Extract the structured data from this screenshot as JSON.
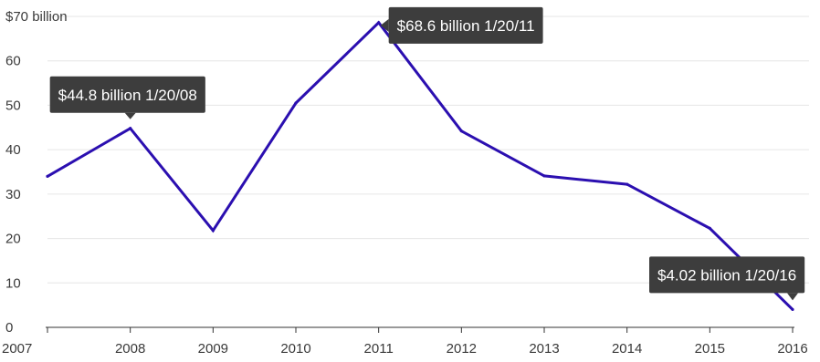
{
  "chart_data": {
    "type": "line",
    "title": "",
    "xlabel": "",
    "ylabel": "",
    "x": [
      2007,
      2008,
      2009,
      2010,
      2011,
      2012,
      2013,
      2014,
      2015,
      2016
    ],
    "y_top_tick_label": "$70 billion",
    "y_ticks": [
      0,
      10,
      20,
      30,
      40,
      50,
      60,
      70
    ],
    "x_ticks": [
      "2007",
      "2008",
      "2009",
      "2010",
      "2011",
      "2012",
      "2013",
      "2014",
      "2015",
      "2016"
    ],
    "ylim": [
      0,
      70
    ],
    "xlim": [
      2007,
      2016
    ],
    "grid": true,
    "series": [
      {
        "color": "#2b0fb0",
        "points": [
          {
            "x": 2007,
            "y": 34
          },
          {
            "x": 2008,
            "y": 44.8
          },
          {
            "x": 2009,
            "y": 21.8
          },
          {
            "x": 2010,
            "y": 50.5
          },
          {
            "x": 2011,
            "y": 68.6
          },
          {
            "x": 2012,
            "y": 44.2
          },
          {
            "x": 2013,
            "y": 34.1
          },
          {
            "x": 2014,
            "y": 32.2
          },
          {
            "x": 2015,
            "y": 22.3
          },
          {
            "x": 2016,
            "y": 4.02
          }
        ]
      }
    ],
    "annotations": [
      {
        "text": "$44.8 billion 1/20/08",
        "x": 2008,
        "y": 44.8
      },
      {
        "text": "$68.6 billion 1/20/11",
        "x": 2011,
        "y": 68.6
      },
      {
        "text": "$4.02 billion 1/20/16",
        "x": 2016,
        "y": 4.02
      }
    ]
  },
  "colors": {
    "line": "#2b0fb0",
    "callout_bg": "#3d3d3d",
    "grid": "#e6e6e6",
    "text": "#3a3a3a"
  }
}
